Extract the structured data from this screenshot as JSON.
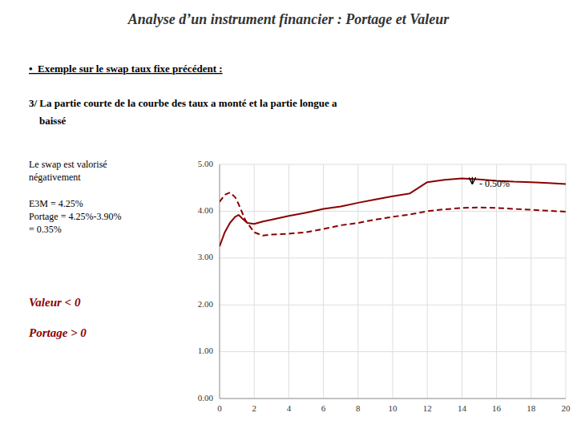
{
  "chart_data": {
    "type": "line",
    "title": "Analyse d’un instrument financier : Portage et Valeur",
    "text_lines": [
      "•  Exemple sur le swap taux fixe précédent :",
      "3/ La partie courte de la courbe des taux a monté et la partie longue a",
      "    baissé",
      "Le swap est valorisé",
      "négativement",
      "E3M = 4.25%",
      "Portage = 4.25%-3.90%",
      "= 0.35%"
    ],
    "notes": [
      {
        "text": "Valeur < 0",
        "color": "#8B0000"
      },
      {
        "text": "Portage > 0",
        "color": "#8B0000"
      }
    ],
    "series": [
      {
        "color": "#8B0000",
        "line_style": "solid",
        "x": [
          0.0,
          0.3,
          0.6,
          0.9,
          1.1,
          1.3,
          1.6,
          2.0,
          2.5,
          3.0,
          4.0,
          5.0,
          6.0,
          7.0,
          8.0,
          9.0,
          10.0,
          11.0,
          12.0,
          13.0,
          14.0,
          15.0,
          16.0,
          17.0,
          18.0,
          19.0,
          20.0
        ],
        "values": [
          3.25,
          3.55,
          3.75,
          3.88,
          3.92,
          3.85,
          3.75,
          3.73,
          3.78,
          3.82,
          3.9,
          3.97,
          4.05,
          4.1,
          4.18,
          4.25,
          4.32,
          4.38,
          4.62,
          4.67,
          4.7,
          4.68,
          4.65,
          4.63,
          4.62,
          4.6,
          4.58
        ]
      },
      {
        "color": "#8B0000",
        "line_style": "dashed",
        "x": [
          0.0,
          0.3,
          0.6,
          0.9,
          1.1,
          1.5,
          2.0,
          2.5,
          3.0,
          4.0,
          5.0,
          6.0,
          7.0,
          8.0,
          9.0,
          10.0,
          11.0,
          12.0,
          13.0,
          14.0,
          15.0,
          16.0,
          17.0,
          18.0,
          19.0,
          20.0
        ],
        "values": [
          4.2,
          4.35,
          4.4,
          4.3,
          4.15,
          3.8,
          3.55,
          3.48,
          3.5,
          3.52,
          3.55,
          3.62,
          3.7,
          3.75,
          3.82,
          3.88,
          3.93,
          4.0,
          4.04,
          4.07,
          4.08,
          4.07,
          4.05,
          4.03,
          4.01,
          3.99
        ]
      }
    ],
    "xlim": [
      0,
      20
    ],
    "ylim": [
      0.0,
      5.0
    ],
    "xticks": [
      0,
      2,
      4,
      6,
      8,
      10,
      12,
      14,
      16,
      18,
      20
    ],
    "yticks": [
      {
        "value": 0.0,
        "label": "0.00"
      },
      {
        "value": 1.0,
        "label": "1.00"
      },
      {
        "value": 2.0,
        "label": "2.00"
      },
      {
        "value": 3.0,
        "label": "3.00"
      },
      {
        "value": 4.0,
        "label": "4.00"
      },
      {
        "value": 5.0,
        "label": "5.00"
      }
    ],
    "grid": true,
    "arrow": {
      "x": 14.6,
      "y_start": 4.73,
      "y_end": 4.59
    },
    "annotation": {
      "text": "- 0.50%",
      "x": 15.0,
      "y": 4.57
    }
  }
}
